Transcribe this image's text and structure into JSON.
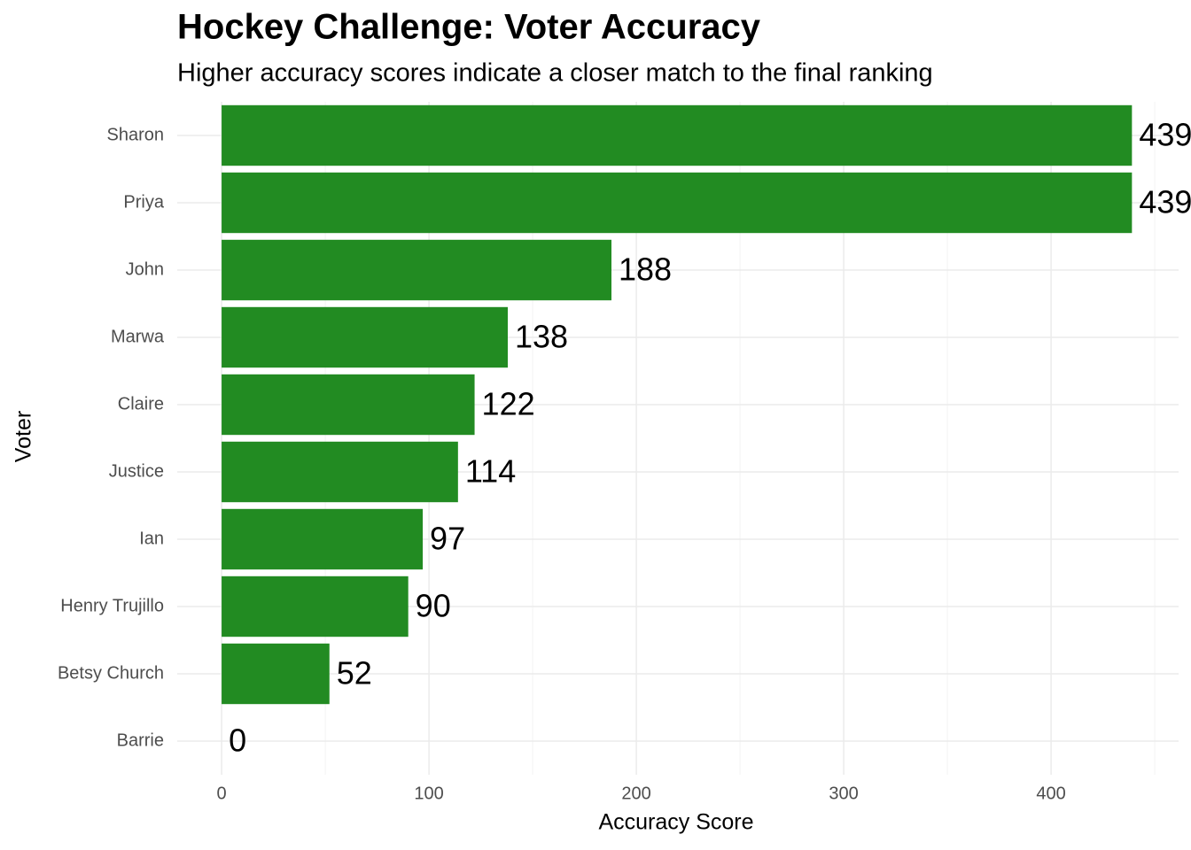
{
  "chart_data": {
    "type": "barh",
    "title": "Hockey Challenge: Voter Accuracy",
    "subtitle": "Higher accuracy scores indicate a closer match to the final ranking",
    "x_label": "Accuracy Score",
    "y_label": "Voter",
    "categories": [
      "Sharon",
      "Priya",
      "John",
      "Marwa",
      "Claire",
      "Justice",
      "Ian",
      "Henry Trujillo",
      "Betsy Church",
      "Barrie"
    ],
    "values": [
      439,
      439,
      188,
      138,
      122,
      114,
      97,
      90,
      52,
      0
    ],
    "color": "#228b22",
    "xlim": [
      -21.4,
      461.5
    ],
    "xticks": [
      0,
      100,
      200,
      300,
      400
    ],
    "grid": true
  }
}
